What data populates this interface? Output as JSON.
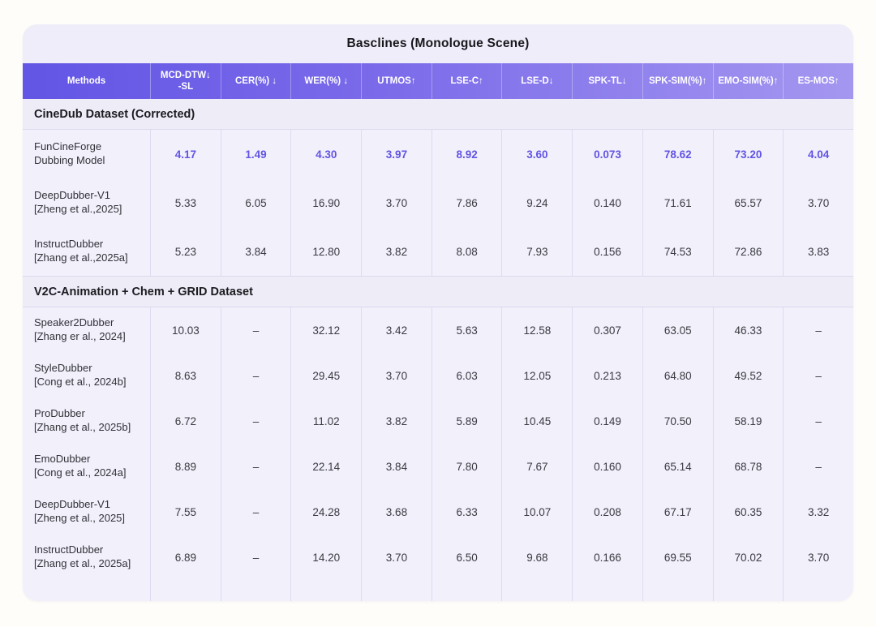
{
  "title": "Basclines (Monologue Scene)",
  "accent_colors": {
    "header_gradient_left": "#6355e5",
    "header_gradient_right": "#a497f0",
    "highlight_value": "#6254e4",
    "card_background": "#eeedf9",
    "row_background": "#f1f0fb"
  },
  "columns": [
    {
      "label": "Methods"
    },
    {
      "label": "MCD-DTW↓\n-SL"
    },
    {
      "label": "CER(%) ↓"
    },
    {
      "label": "WER(%) ↓"
    },
    {
      "label": "UTMOS↑"
    },
    {
      "label": "LSE-C↑"
    },
    {
      "label": "LSE-D↓"
    },
    {
      "label": "SPK-TL↓"
    },
    {
      "label": "SPK-SIM(%)↑"
    },
    {
      "label": "EMO-SIM(%)↑"
    },
    {
      "label": "ES-MOS↑"
    }
  ],
  "sections": [
    {
      "header": "CineDub Dataset (Corrected)",
      "rows": [
        {
          "method_line1": "FunCineForge",
          "method_line2": "Dubbing Model",
          "highlight": true,
          "values": [
            "4.17",
            "1.49",
            "4.30",
            "3.97",
            "8.92",
            "3.60",
            "0.073",
            "78.62",
            "73.20",
            "4.04"
          ]
        },
        {
          "method_line1": "DeepDubber-V1",
          "method_line2": "[Zheng et al.,2025]",
          "highlight": false,
          "values": [
            "5.33",
            "6.05",
            "16.90",
            "3.70",
            "7.86",
            "9.24",
            "0.140",
            "71.61",
            "65.57",
            "3.70"
          ]
        },
        {
          "method_line1": "InstructDubber",
          "method_line2": "[Zhang et al.,2025a]",
          "highlight": false,
          "values": [
            "5.23",
            "3.84",
            "12.80",
            "3.82",
            "8.08",
            "7.93",
            "0.156",
            "74.53",
            "72.86",
            "3.83"
          ]
        }
      ]
    },
    {
      "header": "V2C-Animation + Chem + GRID Dataset",
      "rows": [
        {
          "method_line1": "Speaker2Dubber",
          "method_line2": "[Zhang er al., 2024]",
          "highlight": false,
          "values": [
            "10.03",
            "–",
            "32.12",
            "3.42",
            "5.63",
            "12.58",
            "0.307",
            "63.05",
            "46.33",
            "–"
          ]
        },
        {
          "method_line1": "StyleDubber",
          "method_line2": "[Cong et al., 2024b]",
          "highlight": false,
          "values": [
            "8.63",
            "–",
            "29.45",
            "3.70",
            "6.03",
            "12.05",
            "0.213",
            "64.80",
            "49.52",
            "–"
          ]
        },
        {
          "method_line1": "ProDubber",
          "method_line2": "[Zhang et al., 2025b]",
          "highlight": false,
          "values": [
            "6.72",
            "–",
            "11.02",
            "3.82",
            "5.89",
            "10.45",
            "0.149",
            "70.50",
            "58.19",
            "–"
          ]
        },
        {
          "method_line1": "EmoDubber",
          "method_line2": "[Cong et al., 2024a]",
          "highlight": false,
          "values": [
            "8.89",
            "–",
            "22.14",
            "3.84",
            "7.80",
            "7.67",
            "0.160",
            "65.14",
            "68.78",
            "–"
          ]
        },
        {
          "method_line1": "DeepDubber-V1",
          "method_line2": "[Zheng et al., 2025]",
          "highlight": false,
          "values": [
            "7.55",
            "–",
            "24.28",
            "3.68",
            "6.33",
            "10.07",
            "0.208",
            "67.17",
            "60.35",
            "3.32"
          ]
        },
        {
          "method_line1": "InstructDubber",
          "method_line2": "[Zhang et al., 2025a]",
          "highlight": false,
          "values": [
            "6.89",
            "–",
            "14.20",
            "3.70",
            "6.50",
            "9.68",
            "0.166",
            "69.55",
            "70.02",
            "3.70"
          ]
        }
      ]
    }
  ],
  "chart_data": {
    "type": "table",
    "title": "Basclines (Monologue Scene)",
    "columns": [
      "Methods",
      "MCD-DTW-SL",
      "CER(%)",
      "WER(%)",
      "UTMOS",
      "LSE-C",
      "LSE-D",
      "SPK-TL",
      "SPK-SIM(%)",
      "EMO-SIM(%)",
      "ES-MOS"
    ],
    "groups": [
      {
        "group": "CineDub Dataset (Corrected)",
        "rows": [
          [
            "FunCineForge Dubbing Model",
            4.17,
            1.49,
            4.3,
            3.97,
            8.92,
            3.6,
            0.073,
            78.62,
            73.2,
            4.04
          ],
          [
            "DeepDubber-V1 [Zheng et al.,2025]",
            5.33,
            6.05,
            16.9,
            3.7,
            7.86,
            9.24,
            0.14,
            71.61,
            65.57,
            3.7
          ],
          [
            "InstructDubber [Zhang et al.,2025a]",
            5.23,
            3.84,
            12.8,
            3.82,
            8.08,
            7.93,
            0.156,
            74.53,
            72.86,
            3.83
          ]
        ]
      },
      {
        "group": "V2C-Animation + Chem + GRID Dataset",
        "rows": [
          [
            "Speaker2Dubber [Zhang er al., 2024]",
            10.03,
            null,
            32.12,
            3.42,
            5.63,
            12.58,
            0.307,
            63.05,
            46.33,
            null
          ],
          [
            "StyleDubber [Cong et al., 2024b]",
            8.63,
            null,
            29.45,
            3.7,
            6.03,
            12.05,
            0.213,
            64.8,
            49.52,
            null
          ],
          [
            "ProDubber [Zhang et al., 2025b]",
            6.72,
            null,
            11.02,
            3.82,
            5.89,
            10.45,
            0.149,
            70.5,
            58.19,
            null
          ],
          [
            "EmoDubber [Cong et al., 2024a]",
            8.89,
            null,
            22.14,
            3.84,
            7.8,
            7.67,
            0.16,
            65.14,
            68.78,
            null
          ],
          [
            "DeepDubber-V1 [Zheng et al., 2025]",
            7.55,
            null,
            24.28,
            3.68,
            6.33,
            10.07,
            0.208,
            67.17,
            60.35,
            3.32
          ],
          [
            "InstructDubber [Zhang et al., 2025a]",
            6.89,
            null,
            14.2,
            3.7,
            6.5,
            9.68,
            0.166,
            69.55,
            70.02,
            3.7
          ]
        ]
      }
    ]
  }
}
